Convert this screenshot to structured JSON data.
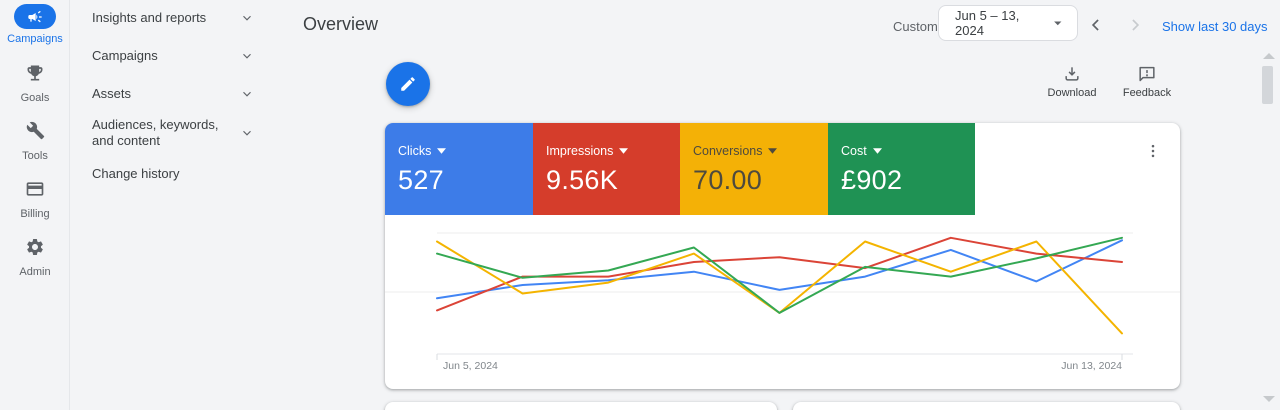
{
  "sidebar_rail": {
    "items": [
      {
        "label": "Campaigns",
        "icon": "megaphone-icon",
        "active": true
      },
      {
        "label": "Goals",
        "icon": "trophy-icon",
        "active": false
      },
      {
        "label": "Tools",
        "icon": "wrench-icon",
        "active": false
      },
      {
        "label": "Billing",
        "icon": "credit-card-icon",
        "active": false
      },
      {
        "label": "Admin",
        "icon": "gear-icon",
        "active": false
      }
    ]
  },
  "nav_menu": {
    "items": [
      {
        "label": "Insights and reports",
        "expandable": true
      },
      {
        "label": "Campaigns",
        "expandable": true
      },
      {
        "label": "Assets",
        "expandable": true
      },
      {
        "label": "Audiences, keywords, and content",
        "expandable": true
      },
      {
        "label": "Change history",
        "expandable": false
      }
    ]
  },
  "header": {
    "title": "Overview",
    "range_type": "Custom",
    "date_range": "Jun 5 – 13, 2024",
    "show_last_link": "Show last 30 days"
  },
  "toolbar": {
    "download_label": "Download",
    "feedback_label": "Feedback"
  },
  "scorecards": [
    {
      "label": "Clicks",
      "value": "527",
      "color": "#3d7ce8",
      "text_color": "#ffffff"
    },
    {
      "label": "Impressions",
      "value": "9.56K",
      "color": "#d53d2b",
      "text_color": "#ffffff"
    },
    {
      "label": "Conversions",
      "value": "70.00",
      "color": "#f4b106",
      "text_color": "#4e4a3e"
    },
    {
      "label": "Cost",
      "value": "£902",
      "color": "#1f9254",
      "text_color": "#ffffff"
    }
  ],
  "chart_data": {
    "type": "line",
    "title": "",
    "xlabel": "",
    "ylabel": "",
    "x": [
      "Jun 5, 2024",
      "Jun 6, 2024",
      "Jun 7, 2024",
      "Jun 8, 2024",
      "Jun 9, 2024",
      "Jun 10, 2024",
      "Jun 11, 2024",
      "Jun 12, 2024",
      "Jun 13, 2024"
    ],
    "x_axis_labels_visible": [
      "Jun 5, 2024",
      "Jun 13, 2024"
    ],
    "ylim": [
      0,
      100
    ],
    "y_scale_note": "no y-axis labels shown; values are normalized 0-100 estimates per series",
    "gridlines_y": [
      50,
      100
    ],
    "legend": "none",
    "series": [
      {
        "name": "Clicks",
        "color": "#4285f4",
        "values": [
          46,
          57,
          61,
          68,
          53,
          64,
          86,
          60,
          94
        ]
      },
      {
        "name": "Impressions",
        "color": "#db4437",
        "values": [
          36,
          64,
          64,
          76,
          80,
          71,
          96,
          83,
          76
        ]
      },
      {
        "name": "Conversions",
        "color": "#f4b400",
        "values": [
          93,
          50,
          59,
          83,
          34,
          93,
          68,
          93,
          17
        ]
      },
      {
        "name": "Cost",
        "color": "#34a853",
        "values": [
          83,
          63,
          69,
          88,
          34,
          72,
          64,
          79,
          96
        ]
      }
    ]
  }
}
